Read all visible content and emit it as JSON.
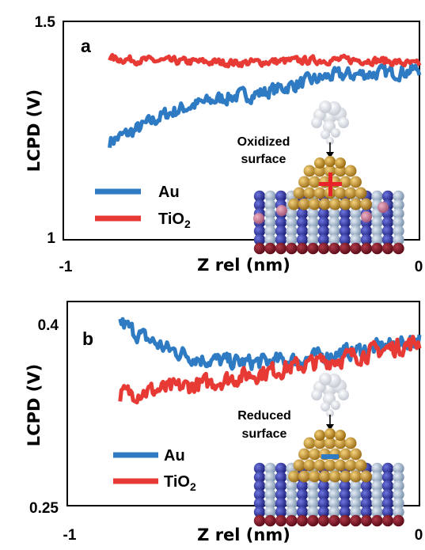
{
  "chart_data": [
    {
      "type": "line",
      "panel_label": "a",
      "xlabel": "Z rel (nm)",
      "ylabel": "LCPD (V)",
      "xlim": [
        -1,
        0
      ],
      "ylim": [
        1,
        1.5
      ],
      "xtick_labels": [
        "-1",
        "0"
      ],
      "ytick_labels": [
        "1",
        "1.5"
      ],
      "annotation": [
        "Oxidized",
        "surface"
      ],
      "legend_position": "bottom-left",
      "series": [
        {
          "name": "Au",
          "color": "#2e7bc4",
          "x": [
            -0.87,
            -0.8,
            -0.72,
            -0.65,
            -0.55,
            -0.45,
            -0.35,
            -0.25,
            -0.15,
            -0.05,
            0
          ],
          "y": [
            1.225,
            1.25,
            1.285,
            1.305,
            1.325,
            1.335,
            1.355,
            1.375,
            1.38,
            1.385,
            1.39
          ]
        },
        {
          "name": "TiO2",
          "color": "#e83a35",
          "x": [
            -0.87,
            -0.75,
            -0.65,
            -0.5,
            -0.35,
            -0.2,
            -0.1,
            0
          ],
          "y": [
            1.415,
            1.41,
            1.408,
            1.405,
            1.41,
            1.412,
            1.41,
            1.4
          ]
        }
      ]
    },
    {
      "type": "line",
      "panel_label": "b",
      "xlabel": "Z rel (nm)",
      "ylabel": "LCPD (V)",
      "xlim": [
        -1,
        0
      ],
      "ylim": [
        0.25,
        0.42
      ],
      "xtick_labels": [
        "-1",
        "0"
      ],
      "ytick_labels": [
        "0.25",
        "0.4"
      ],
      "annotation": [
        "Reduced",
        "surface"
      ],
      "legend_position": "bottom-left",
      "series": [
        {
          "name": "Au",
          "color": "#2e7bc4",
          "x": [
            -0.85,
            -0.8,
            -0.72,
            -0.62,
            -0.5,
            -0.35,
            -0.2,
            -0.05,
            0
          ],
          "y": [
            0.403,
            0.393,
            0.381,
            0.372,
            0.369,
            0.371,
            0.378,
            0.385,
            0.39
          ]
        },
        {
          "name": "TiO2",
          "color": "#e83a35",
          "x": [
            -0.85,
            -0.75,
            -0.62,
            -0.5,
            -0.35,
            -0.2,
            -0.05,
            0
          ],
          "y": [
            0.343,
            0.346,
            0.351,
            0.358,
            0.366,
            0.374,
            0.383,
            0.386
          ]
        }
      ]
    }
  ],
  "legend_labels": [
    "Au",
    "TiO"
  ],
  "legend_subscript": "2"
}
